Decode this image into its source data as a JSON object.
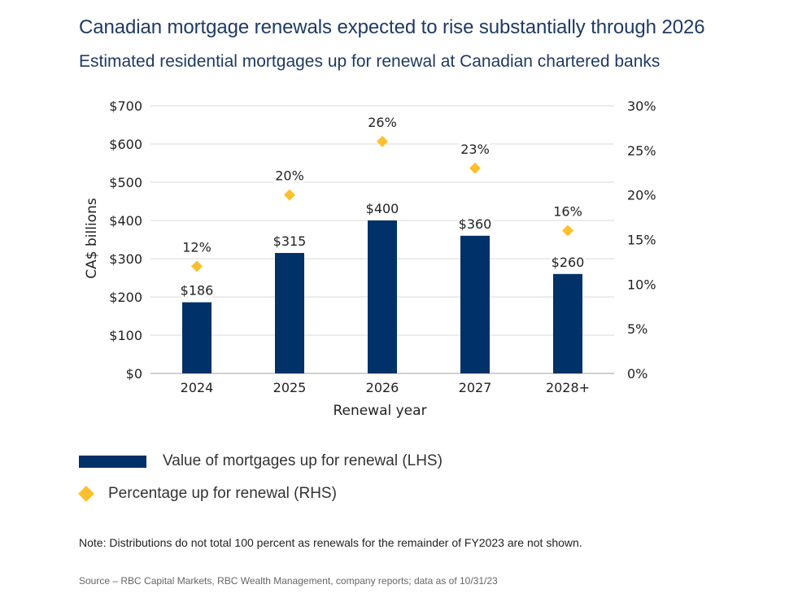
{
  "title": "Canadian mortgage renewals expected to rise substantially through 2026",
  "subtitle": "Estimated residential mortgages up for renewal at Canadian chartered banks",
  "legend": {
    "bar_label": "Value of mortgages up for renewal (LHS)",
    "diamond_label": "Percentage up for renewal (RHS)"
  },
  "note": "Note: Distributions do not total 100 percent as renewals for the remainder of FY2023 are not shown.",
  "source": "Source – RBC Capital Markets, RBC Wealth Management, company reports; data as of 10/31/23",
  "colors": {
    "bar": "#003168",
    "diamond": "#fcc02e",
    "title": "#1f3a63",
    "grid": "#d9d9d9"
  },
  "chart_data": {
    "type": "bar",
    "title": "Canadian mortgage renewals expected to rise substantially through 2026",
    "subtitle": "Estimated residential mortgages up for renewal at Canadian chartered banks",
    "xlabel": "Renewal year",
    "ylabel": "CA$ billions",
    "categories": [
      "2024",
      "2025",
      "2026",
      "2027",
      "2028+"
    ],
    "series": [
      {
        "name": "Value of mortgages up for renewal (LHS)",
        "type": "bar",
        "axis": "left",
        "values": [
          186,
          315,
          400,
          360,
          260
        ],
        "labels": [
          "$186",
          "$315",
          "$400",
          "$360",
          "$260"
        ]
      },
      {
        "name": "Percentage up for renewal (RHS)",
        "type": "scatter",
        "marker": "diamond",
        "axis": "right",
        "values": [
          12,
          20,
          26,
          23,
          16
        ],
        "labels": [
          "12%",
          "20%",
          "26%",
          "23%",
          "16%"
        ]
      }
    ],
    "ylim": [
      0,
      700
    ],
    "y_ticks": [
      0,
      100,
      200,
      300,
      400,
      500,
      600,
      700
    ],
    "y_tick_labels": [
      "$0",
      "$100",
      "$200",
      "$300",
      "$400",
      "$500",
      "$600",
      "$700"
    ],
    "y2lim": [
      0,
      30
    ],
    "y2_ticks": [
      0,
      5,
      10,
      15,
      20,
      25,
      30
    ],
    "y2_tick_labels": [
      "0%",
      "5%",
      "10%",
      "15%",
      "20%",
      "25%",
      "30%"
    ],
    "grid": true,
    "legend_position": "bottom-left"
  }
}
